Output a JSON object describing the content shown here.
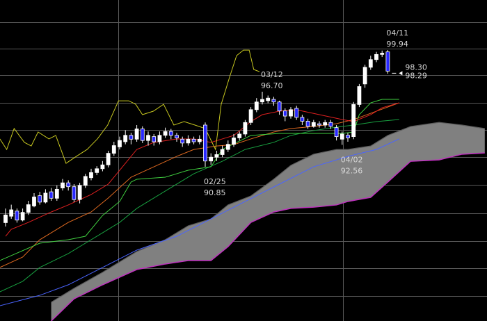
{
  "chart_data": {
    "type": "candlestick",
    "ylim": [
      78.84,
      103.84
    ],
    "candles": {
      "up_color": "#ffffff",
      "down_color": "#2828ff",
      "open": [
        86.5,
        87.0,
        87.4,
        86.7,
        87.3,
        87.8,
        88.6,
        88.1,
        88.9,
        88.4,
        89.2,
        89.6,
        89.3,
        88.3,
        89.4,
        90.0,
        90.4,
        90.7,
        91.0,
        91.9,
        92.4,
        92.8,
        93.3,
        93.0,
        93.8,
        92.9,
        93.2,
        92.8,
        93.3,
        93.6,
        93.3,
        93.0,
        92.7,
        93.0,
        92.8,
        94.1,
        91.3,
        91.6,
        91.8,
        92.2,
        92.6,
        93.1,
        93.4,
        94.3,
        95.3,
        95.9,
        96.0,
        96.1,
        95.9,
        95.2,
        94.8,
        95.4,
        94.7,
        94.4,
        94.0,
        94.2,
        94.1,
        94.3,
        93.9,
        93.0,
        93.3,
        93.2,
        95.7,
        97.3,
        98.6,
        99.2,
        99.6,
        99.8
      ],
      "high": [
        87.6,
        87.9,
        87.6,
        87.6,
        88.2,
        88.8,
        88.9,
        89.1,
        89.2,
        89.4,
        89.9,
        89.8,
        89.5,
        89.6,
        90.3,
        90.7,
        90.9,
        91.3,
        92.1,
        92.8,
        93.2,
        93.7,
        93.5,
        94.1,
        94.0,
        93.6,
        93.4,
        93.6,
        93.9,
        93.8,
        93.5,
        93.2,
        93.3,
        93.2,
        93.3,
        94.3,
        91.9,
        92.1,
        92.5,
        92.9,
        93.4,
        93.6,
        94.5,
        95.5,
        96.2,
        96.7,
        96.4,
        96.3,
        96.0,
        95.4,
        95.5,
        95.6,
        94.9,
        94.6,
        94.5,
        94.4,
        94.5,
        94.5,
        94.1,
        93.6,
        93.5,
        95.9,
        97.3,
        98.8,
        99.5,
        99.8,
        99.9,
        99.94
      ],
      "low": [
        86.2,
        86.8,
        86.5,
        86.6,
        87.1,
        87.7,
        87.9,
        88.0,
        88.2,
        88.2,
        89.0,
        89.0,
        88.1,
        88.0,
        89.2,
        89.8,
        90.2,
        90.5,
        90.8,
        91.7,
        92.2,
        92.6,
        92.6,
        92.8,
        92.7,
        92.5,
        92.5,
        92.6,
        93.1,
        93.0,
        92.8,
        92.4,
        92.5,
        92.6,
        92.6,
        90.85,
        91.0,
        91.3,
        91.6,
        92.0,
        92.4,
        92.9,
        93.2,
        94.1,
        95.1,
        95.7,
        95.8,
        95.6,
        94.9,
        94.4,
        94.6,
        94.5,
        94.1,
        93.8,
        93.9,
        93.9,
        93.9,
        93.8,
        92.9,
        92.56,
        92.8,
        93.0,
        95.5,
        97.0,
        98.4,
        99.0,
        99.4,
        98.1
      ],
      "close": [
        87.1,
        87.5,
        86.7,
        87.3,
        87.9,
        88.5,
        88.1,
        88.8,
        88.4,
        89.1,
        89.6,
        89.3,
        88.3,
        89.4,
        90.1,
        90.4,
        90.7,
        91.0,
        91.9,
        92.5,
        92.9,
        93.3,
        93.0,
        93.8,
        92.9,
        93.3,
        92.8,
        93.3,
        93.6,
        93.3,
        93.1,
        92.7,
        93.0,
        92.8,
        93.0,
        91.3,
        91.6,
        91.8,
        92.2,
        92.6,
        93.1,
        93.4,
        94.3,
        95.3,
        95.9,
        96.1,
        96.2,
        95.9,
        95.2,
        94.8,
        95.3,
        94.7,
        94.4,
        94.0,
        94.3,
        94.1,
        94.3,
        94.0,
        93.2,
        93.4,
        93.1,
        95.7,
        97.1,
        98.6,
        99.2,
        99.6,
        99.7,
        98.3
      ]
    },
    "cloud": {
      "fill": "#808080",
      "x": [
        8,
        12,
        17,
        23,
        28,
        32,
        36,
        39,
        43,
        47,
        50,
        54,
        58,
        60,
        64,
        67,
        71,
        76,
        80,
        84
      ],
      "span_a": {
        "color": "#5c5c5c",
        "values": [
          80.3,
          81.38,
          82.63,
          84.25,
          85.17,
          86.25,
          86.79,
          87.88,
          88.58,
          89.88,
          90.96,
          91.83,
          92.2,
          92.2,
          92.47,
          93.29,
          93.99,
          94.31,
          94.1,
          93.83
        ]
      },
      "span_b": {
        "color": "#c030c0",
        "values": [
          78.84,
          80.57,
          81.66,
          82.85,
          83.28,
          83.55,
          83.55,
          84.63,
          86.52,
          87.33,
          87.61,
          87.71,
          87.88,
          88.15,
          88.47,
          89.66,
          91.28,
          91.39,
          91.83,
          91.93
        ]
      }
    },
    "lines": [
      {
        "color": "#4a64ff",
        "x": [
          -1,
          6,
          11,
          17,
          23,
          30,
          36,
          42,
          48,
          54,
          60,
          65,
          69
        ],
        "values": [
          80.03,
          80.84,
          81.66,
          83.01,
          84.36,
          85.44,
          86.79,
          88.15,
          89.5,
          90.85,
          91.66,
          92.2,
          93.02
        ]
      },
      {
        "color": "#18a040",
        "x": [
          -1,
          3,
          6,
          11,
          16,
          20,
          23,
          28,
          33,
          38,
          42,
          47,
          50,
          54,
          58,
          61,
          65,
          69
        ],
        "values": [
          81.11,
          81.93,
          83.01,
          84.09,
          85.44,
          86.52,
          87.61,
          88.96,
          90.31,
          91.28,
          92.2,
          92.75,
          93.29,
          93.67,
          93.94,
          94.1,
          94.37,
          94.53
        ]
      },
      {
        "color": "#e06a20",
        "x": [
          -1,
          3,
          6,
          11,
          15,
          18,
          22,
          26,
          30,
          33,
          37,
          40,
          43,
          47,
          50,
          54,
          58,
          61,
          65,
          69
        ],
        "values": [
          83.01,
          83.82,
          85.17,
          86.52,
          87.33,
          88.42,
          90.04,
          90.85,
          91.66,
          92.2,
          92.47,
          92.58,
          93.02,
          93.56,
          93.83,
          93.99,
          94.21,
          94.53,
          95.18,
          95.83
        ]
      },
      {
        "color": "#40d040",
        "x": [
          -1,
          6,
          11,
          14,
          17,
          20,
          22,
          23,
          28,
          32,
          36,
          38,
          43,
          48,
          54,
          59,
          61,
          62,
          64,
          66,
          69
        ],
        "values": [
          83.55,
          84.9,
          85.17,
          85.44,
          87.06,
          88.15,
          89.66,
          89.88,
          90.04,
          90.58,
          90.85,
          92.2,
          93.29,
          93.45,
          93.45,
          93.45,
          93.56,
          94.91,
          95.83,
          96.1,
          96.1
        ]
      },
      {
        "color": "#e02020",
        "x": [
          0,
          1,
          4,
          8,
          11,
          15,
          18,
          21,
          23,
          26,
          30,
          33,
          36,
          38,
          40,
          43,
          45,
          48,
          51,
          55,
          59,
          61,
          64,
          66,
          69
        ],
        "values": [
          85.44,
          85.98,
          86.52,
          87.33,
          87.88,
          88.69,
          89.5,
          91.12,
          92.2,
          92.75,
          93.02,
          93.02,
          92.75,
          93.02,
          93.29,
          94.37,
          94.91,
          95.18,
          95.29,
          94.91,
          94.53,
          94.37,
          94.91,
          95.45,
          95.83
        ]
      },
      {
        "color": "#c8c820",
        "x": [
          -1,
          0.2,
          1.5,
          3.3,
          4.5,
          5.7,
          7.6,
          8.8,
          10.6,
          12.4,
          14.3,
          16.1,
          17.9,
          19.8,
          21.6,
          22.8,
          24,
          25.9,
          27.7,
          29.5,
          31.3,
          33.2,
          35,
          36.8,
          37.8,
          39.3,
          40.5,
          41.7,
          42.7,
          43.5,
          44.5
        ],
        "values": [
          93.02,
          92.2,
          93.83,
          92.75,
          92.47,
          93.56,
          93.02,
          93.29,
          91.12,
          91.66,
          92.2,
          93.02,
          94.1,
          95.99,
          95.99,
          95.72,
          94.91,
          95.18,
          95.72,
          94.1,
          94.37,
          94.1,
          93.83,
          92.2,
          95.72,
          97.88,
          99.51,
          99.94,
          99.94,
          98.43,
          98.26
        ]
      }
    ],
    "markers": [
      {
        "date": "02/25",
        "price": 90.85
      },
      {
        "date": "03/12",
        "price": 96.7,
        "price_label": "96.70"
      },
      {
        "date": "04/02",
        "price": 92.56
      },
      {
        "date": "04/11",
        "price": 99.94
      }
    ],
    "price_tags": {
      "values": [
        98.3,
        98.29
      ],
      "value_labels": [
        "98.30",
        "98.29"
      ]
    }
  }
}
